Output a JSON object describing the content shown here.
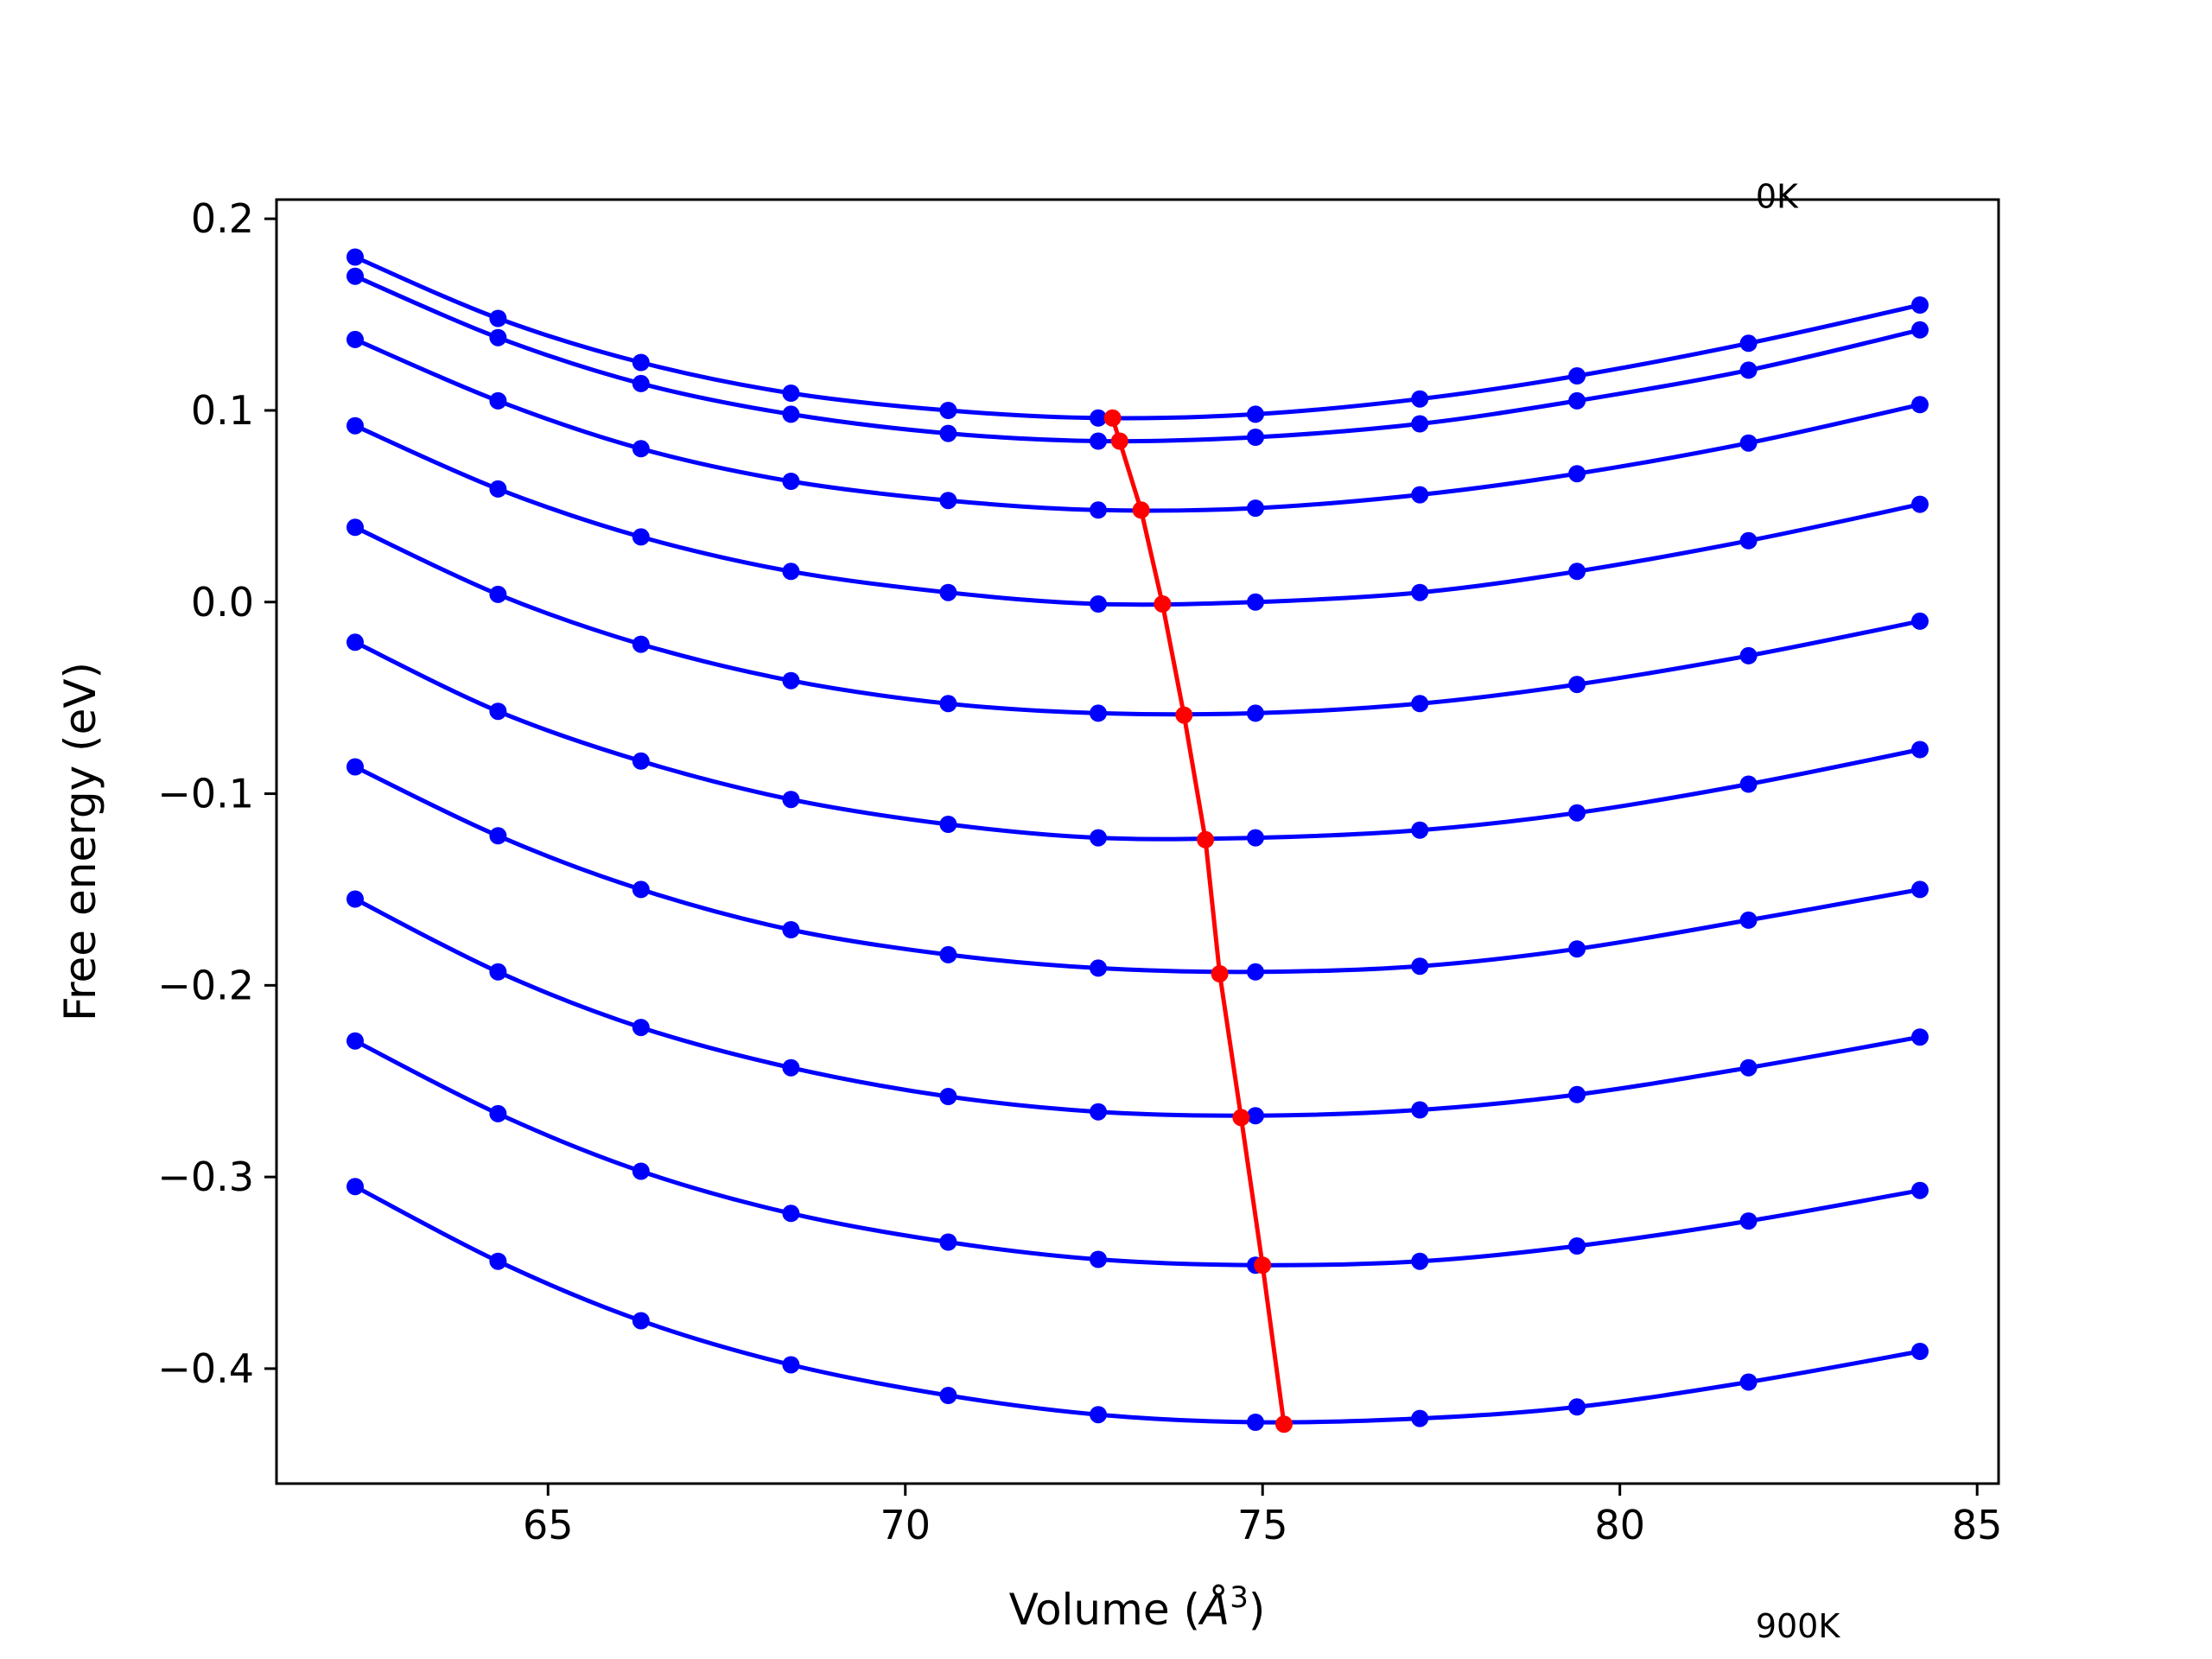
{
  "chart_data": {
    "type": "line",
    "xlabel": "Volume (",
    "xlabel_symbol": "Å",
    "xlabel_exp": "3",
    "xlabel_close": ")",
    "ylabel": "Free energy (eV)",
    "xlim": [
      61.2,
      85.3
    ],
    "ylim": [
      -0.46,
      0.21
    ],
    "xticks": [
      65,
      70,
      75,
      80,
      85
    ],
    "xtick_labels": [
      "65",
      "70",
      "75",
      "80",
      "85"
    ],
    "yticks": [
      0.2,
      0.1,
      0.0,
      -0.1,
      -0.2,
      -0.3,
      -0.4
    ],
    "ytick_labels": [
      "0.2",
      "0.1",
      "0.0",
      "−0.1",
      "−0.2",
      "−0.3",
      "−0.4"
    ],
    "grid": false,
    "annotations": [
      {
        "text": "0K",
        "x": 81.9,
        "y": 0.212
      },
      {
        "text": "900K",
        "x": 81.9,
        "y": -0.534
      }
    ],
    "x": [
      62.3,
      64.3,
      66.3,
      68.4,
      70.6,
      72.7,
      74.9,
      77.2,
      79.4,
      81.8,
      84.2
    ],
    "series": [
      {
        "values": [
          0.18,
          0.148,
          0.125,
          0.109,
          0.1,
          0.096,
          0.098,
          0.106,
          0.118,
          0.135,
          0.155
        ]
      },
      {
        "values": [
          0.17,
          0.138,
          0.114,
          0.098,
          0.088,
          0.084,
          0.086,
          0.093,
          0.105,
          0.121,
          0.142
        ]
      },
      {
        "values": [
          0.137,
          0.105,
          0.08,
          0.063,
          0.053,
          0.048,
          0.049,
          0.056,
          0.067,
          0.083,
          0.103
        ]
      },
      {
        "values": [
          0.092,
          0.059,
          0.034,
          0.016,
          0.005,
          -0.001,
          0.0,
          0.005,
          0.016,
          0.032,
          0.051
        ]
      },
      {
        "values": [
          0.039,
          0.004,
          -0.022,
          -0.041,
          -0.053,
          -0.058,
          -0.058,
          -0.053,
          -0.043,
          -0.028,
          -0.01
        ]
      },
      {
        "values": [
          -0.021,
          -0.057,
          -0.083,
          -0.103,
          -0.116,
          -0.123,
          -0.123,
          -0.119,
          -0.11,
          -0.095,
          -0.077
        ]
      },
      {
        "values": [
          -0.086,
          -0.122,
          -0.15,
          -0.171,
          -0.184,
          -0.191,
          -0.193,
          -0.19,
          -0.181,
          -0.166,
          -0.15
        ]
      },
      {
        "values": [
          -0.155,
          -0.193,
          -0.222,
          -0.243,
          -0.258,
          -0.266,
          -0.268,
          -0.265,
          -0.257,
          -0.243,
          -0.227
        ]
      },
      {
        "values": [
          -0.229,
          -0.267,
          -0.297,
          -0.319,
          -0.334,
          -0.343,
          -0.346,
          -0.344,
          -0.336,
          -0.323,
          -0.307
        ]
      },
      {
        "values": [
          -0.305,
          -0.344,
          -0.375,
          -0.398,
          -0.414,
          -0.424,
          -0.428,
          -0.426,
          -0.42,
          -0.407,
          -0.391
        ]
      }
    ],
    "minima": {
      "x": [
        72.9,
        73.0,
        73.3,
        73.6,
        73.9,
        74.2,
        74.4,
        74.7,
        75.0,
        75.3
      ],
      "y": [
        0.096,
        0.084,
        0.048,
        -0.001,
        -0.059,
        -0.124,
        -0.194,
        -0.269,
        -0.346,
        -0.429
      ]
    },
    "colors": {
      "series": "#0000ff",
      "minima": "#ff0000",
      "axes": "#000000"
    }
  }
}
